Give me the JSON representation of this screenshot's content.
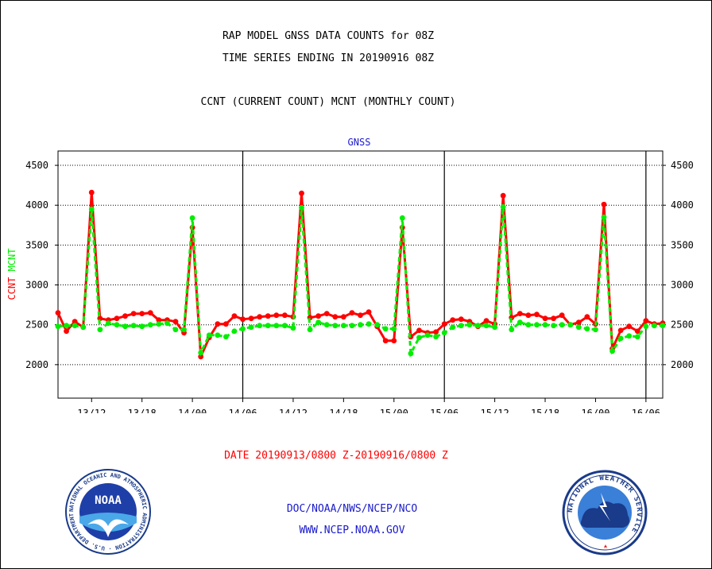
{
  "header": {
    "title_line1": "RAP MODEL GNSS DATA COUNTS for 08Z",
    "title_line2": "TIME SERIES ENDING IN 20190916 08Z",
    "subtitle": "CCNT (CURRENT COUNT) MCNT (MONTHLY COUNT)"
  },
  "footer": {
    "date_range": "DATE 20190913/0800 Z-20190916/0800 Z",
    "org": "DOC/NOAA/NWS/NCEP/NCO",
    "url": "WWW.NCEP.NOAA.GOV"
  },
  "logos": {
    "noaa": {
      "label": "NOAA",
      "ring_text": "NATIONAL OCEANIC AND ATMOSPHERIC ADMINISTRATION · U.S. DEPARTMENT OF COMMERCE"
    },
    "nws": {
      "ring_text": "NATIONAL WEATHER SERVICE"
    }
  },
  "colors": {
    "ccnt": "#ff0000",
    "mcnt": "#00ee00",
    "text": "#000000",
    "link": "#1a1acc"
  },
  "chart_data": {
    "type": "line",
    "title": "GNSS",
    "ylabel_parts": [
      {
        "text": "CCNT",
        "color": "#ff0000"
      },
      {
        "text": "MCNT",
        "color": "#00ee00"
      }
    ],
    "ylim": [
      1580,
      4680
    ],
    "yticks": [
      2000,
      2500,
      3000,
      3500,
      4000,
      4500
    ],
    "x_hours_range": [
      6,
      78
    ],
    "xtick_hours": [
      10,
      16,
      22,
      28,
      34,
      40,
      46,
      52,
      58,
      64,
      70,
      76
    ],
    "xtick_labels": [
      "13/12",
      "13/18",
      "14/00",
      "14/06",
      "14/12",
      "14/18",
      "15/00",
      "15/06",
      "15/12",
      "15/18",
      "16/00",
      "16/06"
    ],
    "vline_hours": [
      28,
      52,
      76
    ],
    "grid": "horizontal dotted",
    "x_hours": [
      6,
      7,
      8,
      9,
      10,
      11,
      12,
      13,
      14,
      15,
      16,
      17,
      18,
      19,
      20,
      21,
      22,
      23,
      24,
      25,
      26,
      27,
      28,
      29,
      30,
      31,
      32,
      33,
      34,
      35,
      36,
      37,
      38,
      39,
      40,
      41,
      42,
      43,
      44,
      45,
      46,
      47,
      48,
      49,
      50,
      51,
      52,
      53,
      54,
      55,
      56,
      57,
      58,
      59,
      60,
      61,
      62,
      63,
      64,
      65,
      66,
      67,
      68,
      69,
      70,
      71,
      72,
      73,
      74,
      75,
      76,
      77,
      78
    ],
    "series": [
      {
        "name": "CCNT",
        "color": "#ff0000",
        "values": [
          2650,
          2420,
          2540,
          2470,
          4160,
          2580,
          2560,
          2580,
          2610,
          2640,
          2640,
          2650,
          2560,
          2560,
          2540,
          2400,
          3720,
          2100,
          2340,
          2510,
          2510,
          2610,
          2570,
          2580,
          2600,
          2610,
          2620,
          2620,
          2600,
          4150,
          2590,
          2610,
          2640,
          2600,
          2600,
          2650,
          2620,
          2660,
          2480,
          2300,
          2300,
          3720,
          2350,
          2430,
          2400,
          2410,
          2510,
          2560,
          2570,
          2540,
          2480,
          2550,
          2510,
          4120,
          2590,
          2640,
          2620,
          2630,
          2580,
          2580,
          2620,
          2500,
          2530,
          2600,
          2510,
          4010,
          2200,
          2430,
          2480,
          2420,
          2550,
          2510,
          2520
        ]
      },
      {
        "name": "MCNT",
        "color": "#00ee00",
        "values": [
          2480,
          2490,
          2490,
          2470,
          3950,
          2440,
          2520,
          2500,
          2480,
          2490,
          2480,
          2500,
          2510,
          2520,
          2440,
          2440,
          3840,
          2150,
          2370,
          2370,
          2350,
          2420,
          2450,
          2470,
          2490,
          2490,
          2490,
          2490,
          2460,
          3970,
          2440,
          2530,
          2500,
          2490,
          2490,
          2490,
          2500,
          2510,
          2500,
          2450,
          2450,
          3840,
          2140,
          2340,
          2370,
          2350,
          2400,
          2470,
          2490,
          2500,
          2490,
          2490,
          2470,
          3980,
          2440,
          2530,
          2500,
          2500,
          2500,
          2490,
          2500,
          2500,
          2470,
          2450,
          2440,
          3850,
          2170,
          2330,
          2360,
          2350,
          2480,
          2490,
          2490
        ]
      }
    ]
  }
}
